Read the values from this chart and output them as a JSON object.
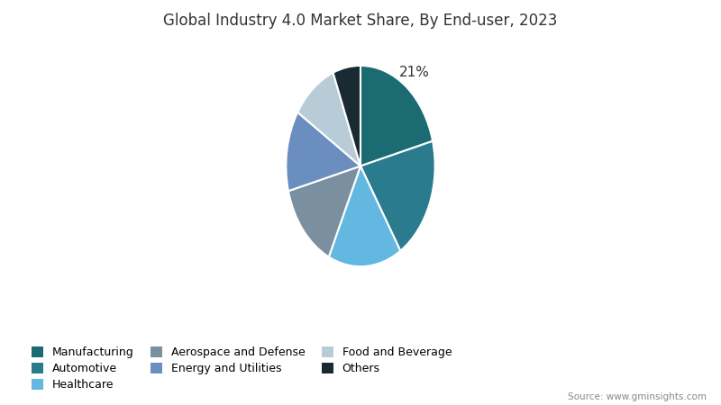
{
  "title": "Global Industry 4.0 Market Share, By End-user, 2023",
  "source": "Source: www.gminsights.com",
  "labels": [
    "Manufacturing",
    "Automotive",
    "Healthcare",
    "Aerospace and Defense",
    "Energy and Utilities",
    "Food and Beverage",
    "Others"
  ],
  "values": [
    21,
    20,
    16,
    14,
    13,
    10,
    6
  ],
  "colors": [
    "#1a6b72",
    "#2b7b8e",
    "#62b8e0",
    "#7a8fa0",
    "#6b8ec0",
    "#b8ccd8",
    "#1a2a32"
  ],
  "legend_ncol": 3,
  "background_color": "#ffffff",
  "startangle": 90
}
